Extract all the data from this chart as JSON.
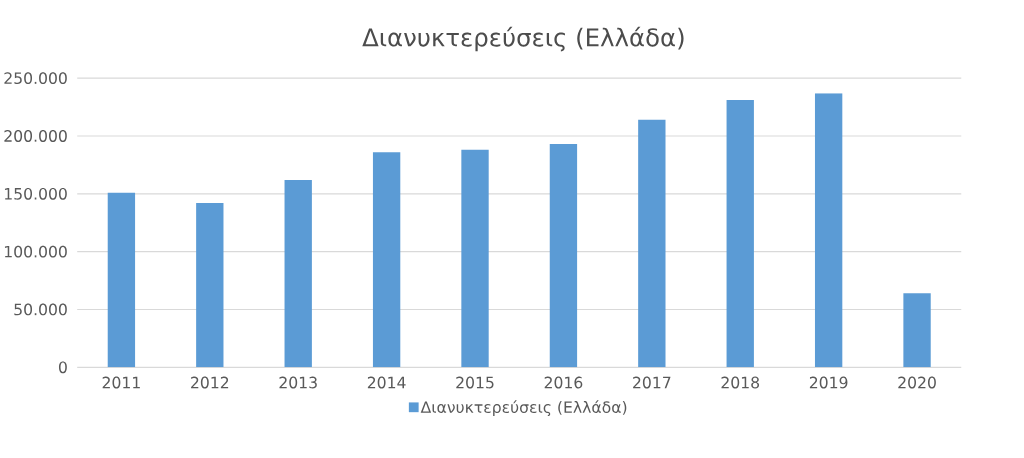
{
  "chart_data": {
    "type": "bar",
    "title": "Διανυκτερεύσεις (Ελλάδα)",
    "categories": [
      "2011",
      "2012",
      "2013",
      "2014",
      "2015",
      "2016",
      "2017",
      "2018",
      "2019",
      "2020"
    ],
    "series": [
      {
        "name": "Διανυκτερεύσεις (Ελλάδα)",
        "color": "#5b9bd5",
        "values": [
          151000,
          142000,
          162000,
          186000,
          188000,
          193000,
          214000,
          231000,
          237000,
          64000
        ]
      }
    ],
    "ylim": [
      0,
      250000
    ],
    "yticks": [
      {
        "value": 0,
        "label": "0"
      },
      {
        "value": 50000,
        "label": "50.000"
      },
      {
        "value": 100000,
        "label": "100.000"
      },
      {
        "value": 150000,
        "label": "150.000"
      },
      {
        "value": 200000,
        "label": "200.000"
      },
      {
        "value": 250000,
        "label": "250.000"
      }
    ],
    "grid": "y",
    "legend": "bottom"
  }
}
